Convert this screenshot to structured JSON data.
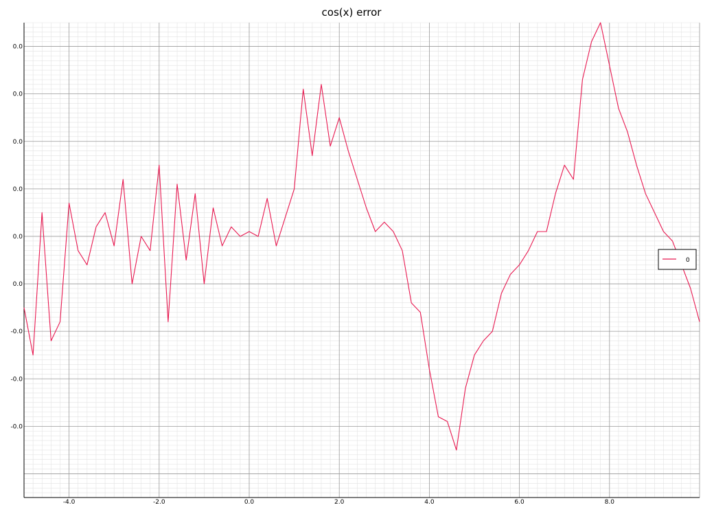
{
  "chart_data": {
    "type": "line",
    "title": "cos(x) error",
    "xlabel": "",
    "ylabel": "",
    "xlim": [
      -5.0,
      10.0
    ],
    "ylim": [
      -5.5e-16,
      4.5e-16
    ],
    "grid": true,
    "legend_position": "right",
    "x_tick_values": [
      -4.0,
      -2.0,
      0.0,
      2.0,
      4.0,
      6.0,
      8.0
    ],
    "x_tick_labels": [
      "-4.0",
      "-2.0",
      "0.0",
      "2.0",
      "4.0",
      "6.0",
      "8.0"
    ],
    "y_tick_values": [
      4e-16,
      3e-16,
      2e-16,
      1e-16,
      0,
      -1e-16,
      -2e-16,
      -3e-16,
      -4e-16
    ],
    "y_tick_labels": [
      "0.0",
      "0.0",
      "0.0",
      "0.0",
      "0.0",
      "0.0",
      "-0.0",
      "-0.0",
      "-0.0"
    ],
    "series": [
      {
        "name": "0",
        "color": "#e8174f",
        "x": [
          -5.0,
          -4.8,
          -4.6,
          -4.4,
          -4.2,
          -4.0,
          -3.8,
          -3.6,
          -3.4,
          -3.2,
          -3.0,
          -2.8,
          -2.6,
          -2.4,
          -2.2,
          -2.0,
          -1.8,
          -1.6,
          -1.4,
          -1.2,
          -1.0,
          -0.8,
          -0.6,
          -0.4,
          -0.2,
          0.0,
          0.2,
          0.4,
          0.6,
          0.8,
          1.0,
          1.2,
          1.4,
          1.6,
          1.8,
          2.0,
          2.2,
          2.4,
          2.6,
          2.8,
          3.0,
          3.2,
          3.4,
          3.6,
          3.8,
          4.0,
          4.2,
          4.4,
          4.6,
          4.8,
          5.0,
          5.2,
          5.4,
          5.6,
          5.8,
          6.0,
          6.2,
          6.4,
          6.6,
          6.8,
          7.0,
          7.2,
          7.4,
          7.6,
          7.8,
          8.0,
          8.2,
          8.4,
          8.6,
          8.8,
          9.0,
          9.2,
          9.4,
          9.6,
          9.8,
          10.0
        ],
        "y": [
          -1.5e-16,
          -2.5e-16,
          5e-17,
          -2.2e-16,
          -1.8e-16,
          7e-17,
          -3e-17,
          -6e-17,
          2e-17,
          5e-17,
          -2e-17,
          1.2e-16,
          -1e-16,
          0,
          -3e-17,
          1.5e-16,
          -1.8e-16,
          1.1e-16,
          -5e-17,
          9e-17,
          -1e-16,
          6e-17,
          -2e-17,
          2e-17,
          0,
          1e-17,
          0,
          8e-17,
          -2e-17,
          4e-17,
          1e-16,
          3.1e-16,
          1.7e-16,
          3.2e-16,
          1.9e-16,
          2.5e-16,
          1.8e-16,
          1.2e-16,
          6e-17,
          1e-17,
          3e-17,
          1e-17,
          -3e-17,
          -1.4e-16,
          -1.6e-16,
          -2.8e-16,
          -3.8e-16,
          -3.9e-16,
          -4.5e-16,
          -3.2e-16,
          -2.5e-16,
          -2.2e-16,
          -2e-16,
          -1.2e-16,
          -8e-17,
          -6e-17,
          -3e-17,
          1e-17,
          1e-17,
          9e-17,
          1.5e-16,
          1.2e-16,
          3.3e-16,
          4.1e-16,
          4.5e-16,
          3.6e-16,
          2.7e-16,
          2.2e-16,
          1.5e-16,
          9e-17,
          5e-17,
          1e-17,
          -1e-17,
          -6e-17,
          -1.1e-16,
          -1.8e-16
        ]
      }
    ]
  }
}
